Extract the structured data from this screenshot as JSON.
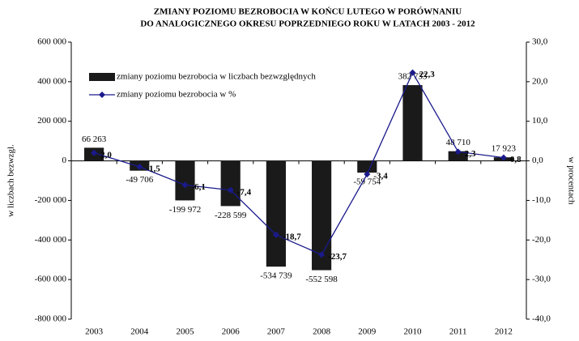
{
  "chart_data": {
    "type": "bar",
    "title": [
      "ZMIANY POZIOMU BEZROBOCIA W KOŃCU LUTEGO W PORÓWNANIU",
      "DO ANALOGICZNEGO OKRESU POPRZEDNIEGO ROKU W LATACH 2003 - 2012"
    ],
    "y_label": "w liczbach bezwzgl.",
    "y2_label": "w procentach",
    "categories": [
      "2003",
      "2004",
      "2005",
      "2006",
      "2007",
      "2008",
      "2009",
      "2010",
      "2011",
      "2012"
    ],
    "series": [
      {
        "name": "zmiany poziomu bezrobocia w liczbach bezwzględnych",
        "type": "bar",
        "color": "#1a1a1a",
        "axis": "y",
        "values": [
          66263,
          -49706,
          -199972,
          -228599,
          -534739,
          -552598,
          -59754,
          382733,
          48710,
          17923
        ],
        "value_labels": [
          "66 263",
          "-49 706",
          "-199 972",
          "-228 599",
          "-534 739",
          "-552 598",
          "-59 754",
          "382 733",
          "48 710",
          "17 923"
        ]
      },
      {
        "name": "zmiany poziomu bezrobocia w %",
        "type": "line",
        "color": "#1a1a8c",
        "axis": "y2",
        "values": [
          2.0,
          -1.5,
          -6.1,
          -7.4,
          -18.7,
          -23.7,
          -3.4,
          22.3,
          2.3,
          0.8
        ],
        "value_labels": [
          "2,0",
          "-1,5",
          "-6,1",
          "-7,4",
          "-18,7",
          "-23,7",
          "-3,4",
          "22,3",
          "2,3",
          "0,8"
        ]
      }
    ],
    "ylim": [
      -800000,
      600000
    ],
    "yticks": [
      {
        "value": -800000,
        "label": "-800 000"
      },
      {
        "value": -600000,
        "label": "-600 000"
      },
      {
        "value": -400000,
        "label": "-400 000"
      },
      {
        "value": -200000,
        "label": "-200 000"
      },
      0,
      {
        "value": 200000,
        "label": "200 000"
      },
      {
        "value": 400000,
        "label": "400 000"
      },
      {
        "value": 600000,
        "label": "600 000"
      }
    ],
    "y2lim": [
      -40,
      30
    ],
    "y2ticks": [
      {
        "value": -40,
        "label": "-40,0"
      },
      {
        "value": -30,
        "label": "-30,0"
      },
      {
        "value": -20,
        "label": "-20,0"
      },
      {
        "value": -10,
        "label": "-10,0"
      },
      {
        "value": 0,
        "label": "0,0"
      },
      {
        "value": 10,
        "label": "10,0"
      },
      {
        "value": 20,
        "label": "20,0"
      },
      {
        "value": 30,
        "label": "30,0"
      }
    ],
    "legend": "top-left"
  }
}
